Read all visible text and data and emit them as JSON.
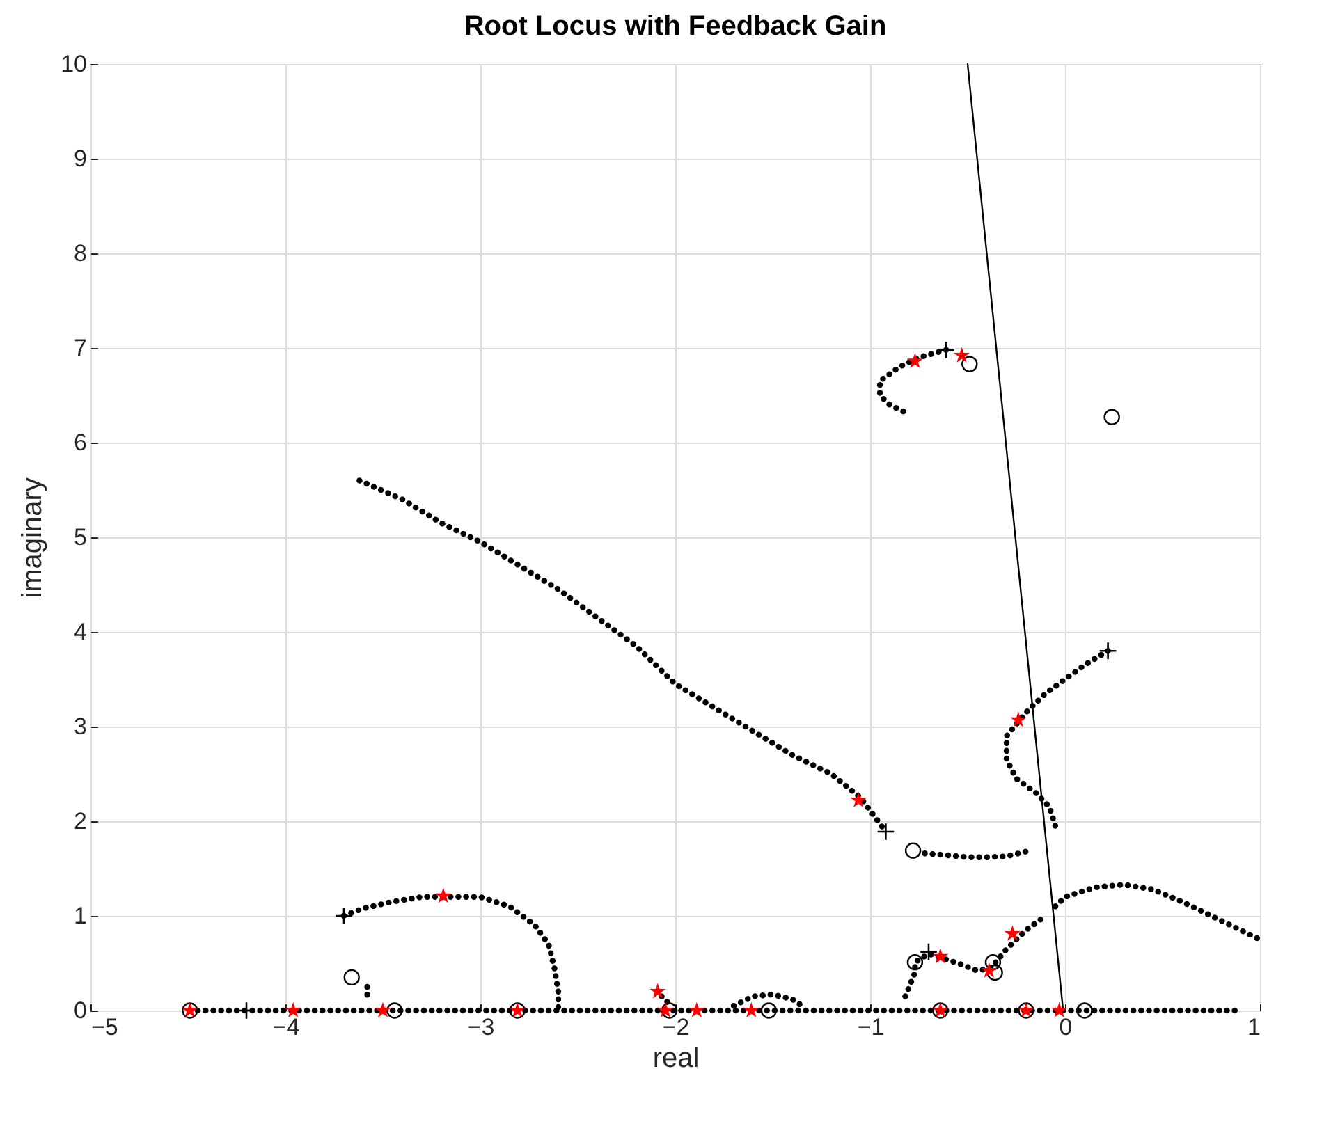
{
  "chart_data": {
    "type": "scatter",
    "title": "Root Locus with Feedback Gain",
    "xlabel": "real",
    "ylabel": "imaginary",
    "xlim": [
      -5,
      1
    ],
    "ylim": [
      0,
      10
    ],
    "xticks": [
      -5,
      -4,
      -3,
      -2,
      -1,
      0,
      1
    ],
    "yticks": [
      0,
      1,
      2,
      3,
      4,
      5,
      6,
      7,
      8,
      9,
      10
    ],
    "grid": true,
    "series": [
      {
        "type": "line",
        "line_style": "dotted",
        "color": "#000000",
        "x": [
          -3.62,
          -3.4,
          -3.2,
          -3.0,
          -2.8,
          -2.6,
          -2.4,
          -2.2,
          -2.0,
          -1.8,
          -1.6,
          -1.4,
          -1.2,
          -1.05,
          -0.92
        ],
        "values": [
          5.6,
          5.4,
          5.15,
          4.95,
          4.7,
          4.45,
          4.15,
          3.85,
          3.45,
          3.2,
          2.95,
          2.7,
          2.5,
          2.25,
          1.89
        ]
      },
      {
        "type": "line",
        "line_style": "dotted",
        "color": "#000000",
        "x": [
          -0.72,
          -0.6,
          -0.5,
          -0.4,
          -0.3,
          -0.2
        ],
        "values": [
          1.66,
          1.64,
          1.62,
          1.62,
          1.63,
          1.68
        ]
      },
      {
        "type": "line",
        "line_style": "dotted",
        "color": "#000000",
        "x": [
          0.22,
          0.1,
          0.0,
          -0.1,
          -0.2,
          -0.3,
          -0.3,
          -0.25,
          -0.15,
          -0.08,
          -0.05
        ],
        "values": [
          3.8,
          3.65,
          3.5,
          3.35,
          3.15,
          2.9,
          2.65,
          2.45,
          2.3,
          2.15,
          1.95
        ]
      },
      {
        "type": "line",
        "line_style": "dotted",
        "color": "#000000",
        "x": [
          -0.05,
          0.0,
          0.15,
          0.3,
          0.45,
          0.6,
          0.75,
          0.9,
          0.99
        ],
        "values": [
          1.1,
          1.2,
          1.3,
          1.33,
          1.28,
          1.15,
          1.0,
          0.85,
          0.76
        ]
      },
      {
        "type": "line",
        "line_style": "dotted",
        "color": "#000000",
        "x": [
          -0.61,
          -0.75,
          -0.85,
          -0.95,
          -0.95,
          -0.9,
          -0.8
        ],
        "values": [
          6.98,
          6.9,
          6.8,
          6.65,
          6.5,
          6.4,
          6.3
        ]
      },
      {
        "type": "line",
        "line_style": "dotted",
        "color": "#000000",
        "x": [
          -3.7,
          -3.6,
          -3.45,
          -3.3,
          -3.0,
          -2.85,
          -2.72,
          -2.65,
          -2.62,
          -2.6,
          -2.6
        ],
        "values": [
          1.0,
          1.08,
          1.15,
          1.2,
          1.2,
          1.1,
          0.9,
          0.7,
          0.45,
          0.2,
          0.02
        ]
      },
      {
        "type": "line",
        "line_style": "dotted",
        "color": "#000000",
        "x": [
          -1.7,
          -1.6,
          -1.5,
          -1.4,
          -1.35
        ],
        "values": [
          0.05,
          0.15,
          0.17,
          0.12,
          0.05
        ]
      },
      {
        "type": "line",
        "line_style": "dotted",
        "color": "#000000",
        "x": [
          -0.82,
          -0.77,
          -0.77,
          -0.7,
          -0.55,
          -0.45,
          -0.38,
          -0.3,
          -0.2,
          -0.1
        ],
        "values": [
          0.15,
          0.4,
          0.51,
          0.6,
          0.5,
          0.42,
          0.45,
          0.65,
          0.85,
          1.0
        ]
      },
      {
        "type": "line",
        "line_style": "dotted",
        "color": "#000000",
        "x": [
          -4.45,
          0.9
        ],
        "values": [
          0,
          0
        ]
      },
      {
        "type": "line",
        "line_style": "dotted",
        "color": "#000000",
        "x": [
          -3.58,
          -3.58
        ],
        "values": [
          0.25,
          0.1
        ]
      },
      {
        "type": "line",
        "line_style": "dotted",
        "color": "#000000",
        "x": [
          -2.07,
          -2.02
        ],
        "values": [
          0.15,
          0.05
        ]
      },
      {
        "type": "line",
        "line_style": "solid",
        "color": "#000000",
        "x": [
          -0.5,
          -0.01
        ],
        "values": [
          10,
          0
        ]
      },
      {
        "marker": "cross",
        "color": "#000000",
        "x": [
          -3.7,
          -4.2,
          -0.61,
          0.22,
          -0.92,
          -0.7
        ],
        "values": [
          1.0,
          0,
          6.98,
          3.8,
          1.89,
          0.62
        ]
      },
      {
        "marker": "circle",
        "color": "#000000",
        "x": [
          -3.66,
          -3.44,
          -1.52,
          -2.03,
          -0.78,
          -0.49,
          0.24,
          -0.77,
          -0.37,
          -0.36,
          0.1,
          -4.49,
          -2.81,
          -0.64,
          -0.2
        ],
        "values": [
          0.35,
          0,
          0,
          0,
          1.69,
          6.83,
          6.27,
          0.51,
          0.51,
          0.4,
          0,
          0,
          0,
          0,
          0
        ]
      },
      {
        "marker": "star",
        "color": "#ff0000",
        "x": [
          -4.49,
          -3.96,
          -3.5,
          -3.19,
          -2.81,
          -2.09,
          -2.05,
          -1.89,
          -1.61,
          -1.06,
          -0.77,
          -0.53,
          -0.24,
          -0.64,
          -0.39,
          -0.27,
          -0.64,
          -0.2,
          -0.03
        ],
        "values": [
          0,
          0,
          0,
          1.21,
          0,
          0.2,
          0,
          0,
          0,
          2.22,
          6.86,
          6.92,
          3.07,
          0.57,
          0.42,
          0.81,
          0,
          0,
          0
        ]
      }
    ]
  }
}
